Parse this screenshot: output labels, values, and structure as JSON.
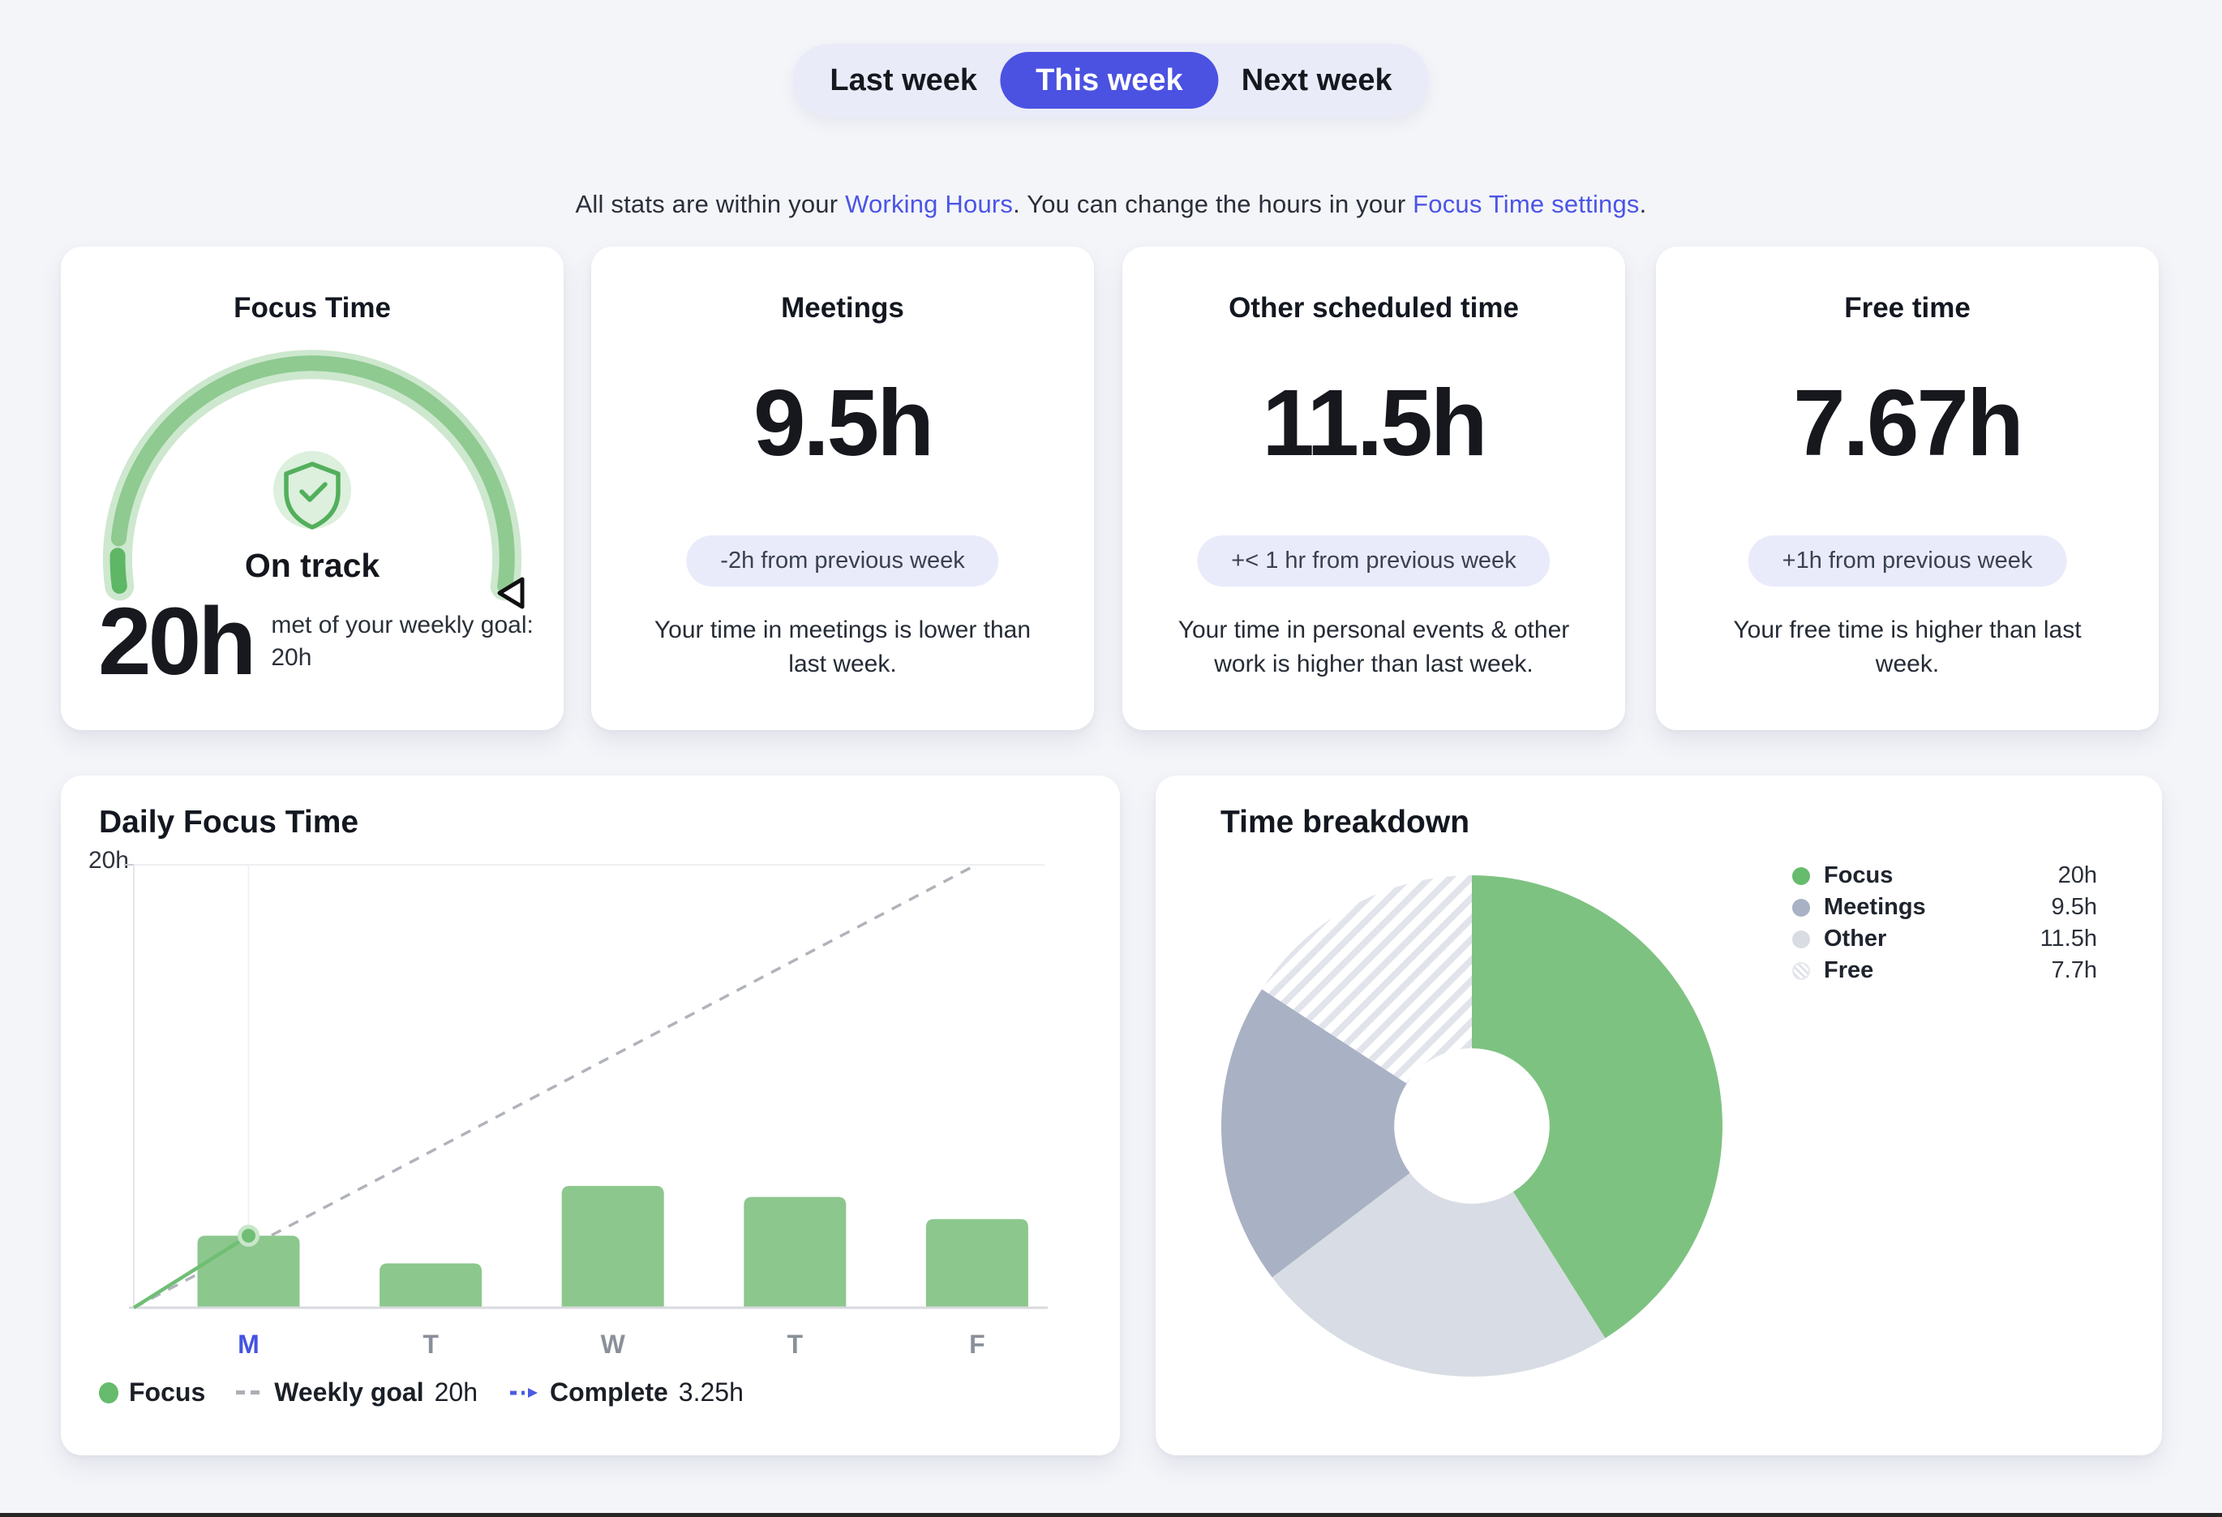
{
  "week_tabs": {
    "last": "Last week",
    "this": "This week",
    "next": "Next week"
  },
  "subtitle": {
    "part1": "All stats are within your ",
    "link_working_hours": "Working Hours",
    "part2": ". You can change the hours in your ",
    "link_focus_settings": "Focus Time settings",
    "part3": "."
  },
  "cards": {
    "focus_time": {
      "title": "Focus Time",
      "status_label": "On track",
      "value": "20h",
      "description": "met of your weekly goal: 20h"
    },
    "meetings": {
      "title": "Meetings",
      "value": "9.5h",
      "badge": "-2h from previous week",
      "description": "Your time in meetings is lower than last week."
    },
    "other_scheduled": {
      "title": "Other scheduled time",
      "value": "11.5h",
      "badge": "+< 1 hr from previous week",
      "description": "Your time in personal events & other work is higher than last week."
    },
    "free_time": {
      "title": "Free time",
      "value": "7.67h",
      "badge": "+1h from previous week",
      "description": "Your free time is higher than last week."
    }
  },
  "daily_focus_card": {
    "title": "Daily Focus Time"
  },
  "breakdown_card": {
    "title": "Time breakdown"
  },
  "chart_data": [
    {
      "type": "bar",
      "title": "Daily Focus Time",
      "categories": [
        "M",
        "T",
        "W",
        "T",
        "F"
      ],
      "series": [
        {
          "name": "Focus",
          "values": [
            3.25,
            2,
            5.5,
            5,
            4
          ]
        }
      ],
      "ylim": [
        0,
        20
      ],
      "y_tick_labels": [
        "20h"
      ],
      "highlight_category_index": 0,
      "goal_line": {
        "name": "Weekly goal",
        "value_label": "20h",
        "start_hours": 0,
        "end_hours": 20,
        "style": "dashed"
      },
      "progress_marker": {
        "name": "Complete",
        "value_label": "3.25h",
        "day_index": 0,
        "hours": 3.25
      },
      "legend_position": "bottom-left",
      "bar_color": "#8CC78D",
      "goal_line_color": "#B0B3BA",
      "progress_color": "#6FBE74",
      "highlight_tick_color": "#4353E3",
      "tick_color": "#8A9099"
    },
    {
      "type": "pie",
      "title": "Time breakdown",
      "labels": [
        "Focus",
        "Meetings",
        "Other",
        "Free"
      ],
      "values": [
        20,
        9.5,
        11.5,
        7.7
      ],
      "value_labels": [
        "20h",
        "9.5h",
        "11.5h",
        "7.7h"
      ],
      "slice_order_clockwise": [
        "Focus",
        "Other",
        "Meetings",
        "Free"
      ],
      "slice_colors": {
        "Focus": "#7EC281",
        "Meetings": "#A9B1C4",
        "Other": "#D8DCE4",
        "Free": "hatched-white"
      },
      "legend_dot_colors": {
        "Focus": "#66BB6C",
        "Meetings": "#A9B1C4",
        "Other": "#D9DCE3",
        "Free": "hatched-white"
      },
      "donut_inner_ratio": 0.31,
      "start_angle_deg": 0,
      "legend_position": "top-right"
    }
  ],
  "colors": {
    "accent_indigo": "#4B52E1",
    "link": "#4B55E6",
    "page_bg": "#F4F5F9",
    "badge_bg": "#EAEBFA",
    "gauge_track": "#CDE8CE",
    "gauge_progress": "#8FCA90",
    "gauge_start_cap": "#5EB765",
    "gauge_icon_bg": "#DCF0DD",
    "gauge_icon": "#53AF5C",
    "hatch_stripe": "#E1E4EB"
  }
}
